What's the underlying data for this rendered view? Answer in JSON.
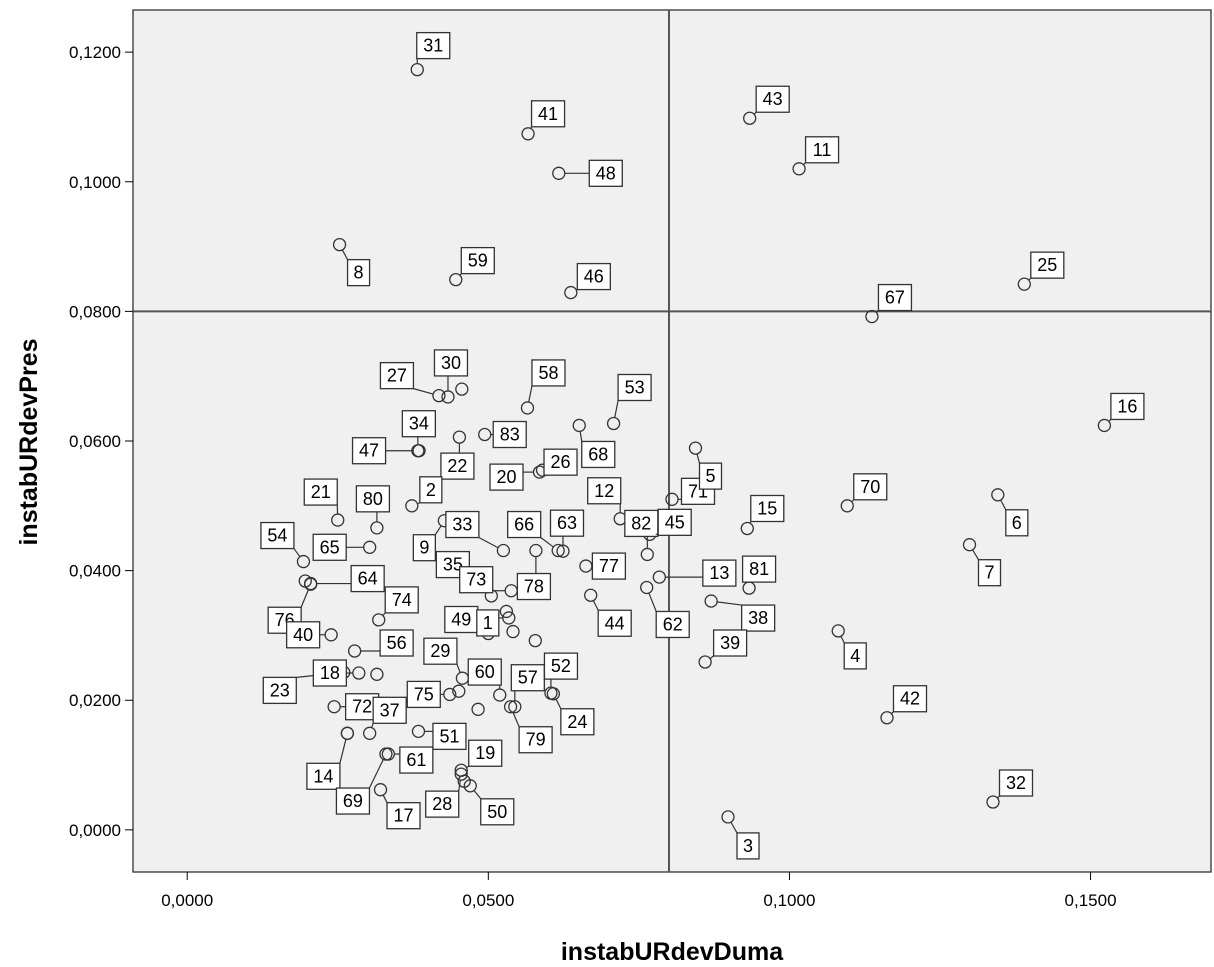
{
  "chart_data": {
    "type": "scatter",
    "xlabel": "instabURdevDuma",
    "ylabel": "instabURdevPres",
    "xlim": [
      -0.009,
      0.17
    ],
    "ylim": [
      -0.0065,
      0.1265
    ],
    "x_ticks": [
      0.0,
      0.05,
      0.1,
      0.15
    ],
    "x_tick_labels": [
      "0,0000",
      "0,0500",
      "0,1000",
      "0,1500"
    ],
    "y_ticks": [
      0.0,
      0.02,
      0.04,
      0.06,
      0.08,
      0.1,
      0.12
    ],
    "y_tick_labels": [
      "0,0000",
      "0,0200",
      "0,0400",
      "0,0600",
      "0,0800",
      "0,1000",
      "0,1200"
    ],
    "reference_lines": {
      "x": 0.08,
      "y": 0.08
    },
    "grid": false,
    "points": [
      {
        "label": "31",
        "x": 0.0382,
        "y": 0.1173,
        "dx": 16,
        "dy": -24
      },
      {
        "label": "41",
        "x": 0.0566,
        "y": 0.1074,
        "dx": 20,
        "dy": -20
      },
      {
        "label": "48",
        "x": 0.0617,
        "y": 0.1013,
        "dx": 47,
        "dy": 0
      },
      {
        "label": "43",
        "x": 0.0934,
        "y": 0.1098,
        "dx": 23,
        "dy": -19
      },
      {
        "label": "11",
        "x": 0.1016,
        "y": 0.102,
        "dx": 23,
        "dy": -19
      },
      {
        "label": "8",
        "x": 0.0253,
        "y": 0.0903,
        "dx": 19,
        "dy": 28
      },
      {
        "label": "59",
        "x": 0.0446,
        "y": 0.0849,
        "dx": 22,
        "dy": -19
      },
      {
        "label": "46",
        "x": 0.0637,
        "y": 0.0829,
        "dx": 23,
        "dy": -16
      },
      {
        "label": "25",
        "x": 0.139,
        "y": 0.0842,
        "dx": 23,
        "dy": -19
      },
      {
        "label": "67",
        "x": 0.1137,
        "y": 0.0792,
        "dx": 23,
        "dy": -19
      },
      {
        "label": "16",
        "x": 0.1523,
        "y": 0.0624,
        "dx": 23,
        "dy": -19
      },
      {
        "label": "27",
        "x": 0.0418,
        "y": 0.067,
        "dx": -42,
        "dy": -20
      },
      {
        "label": "30",
        "x": 0.0433,
        "y": 0.0668,
        "dx": 3,
        "dy": -34
      },
      {
        "label": "",
        "x": 0.0456,
        "y": 0.068
      },
      {
        "label": "58",
        "x": 0.0565,
        "y": 0.0651,
        "dx": 21,
        "dy": -35
      },
      {
        "label": "53",
        "x": 0.0708,
        "y": 0.0627,
        "dx": 21,
        "dy": -36
      },
      {
        "label": "34",
        "x": 0.0383,
        "y": 0.0585,
        "dx": 1,
        "dy": -27
      },
      {
        "label": "47",
        "x": 0.0385,
        "y": 0.0585,
        "dx": -50,
        "dy": 0
      },
      {
        "label": "22",
        "x": 0.0452,
        "y": 0.0606,
        "dx": -2,
        "dy": 29
      },
      {
        "label": "83",
        "x": 0.0494,
        "y": 0.061,
        "dx": 25,
        "dy": 0
      },
      {
        "label": "26",
        "x": 0.059,
        "y": 0.0555,
        "dx": 18,
        "dy": -8
      },
      {
        "label": "20",
        "x": 0.0585,
        "y": 0.0552,
        "dx": -33,
        "dy": 5
      },
      {
        "label": "68",
        "x": 0.0651,
        "y": 0.0624,
        "dx": 19,
        "dy": 29
      },
      {
        "label": "71",
        "x": 0.0805,
        "y": 0.051,
        "dx": 26,
        "dy": -8
      },
      {
        "label": "5",
        "x": 0.0844,
        "y": 0.0589,
        "dx": 15,
        "dy": 28
      },
      {
        "label": "21",
        "x": 0.025,
        "y": 0.0478,
        "dx": -17,
        "dy": -28
      },
      {
        "label": "80",
        "x": 0.0315,
        "y": 0.0466,
        "dx": -4,
        "dy": -29
      },
      {
        "label": "2",
        "x": 0.0373,
        "y": 0.05,
        "dx": 19,
        "dy": -16
      },
      {
        "label": "54",
        "x": 0.0193,
        "y": 0.0414,
        "dx": -26,
        "dy": -26
      },
      {
        "label": "65",
        "x": 0.0303,
        "y": 0.0436,
        "dx": -40,
        "dy": 0
      },
      {
        "label": "9",
        "x": 0.0427,
        "y": 0.0477,
        "dx": -20,
        "dy": 27
      },
      {
        "label": "33",
        "x": 0.0525,
        "y": 0.0431,
        "dx": -41,
        "dy": -26
      },
      {
        "label": "66",
        "x": 0.0616,
        "y": 0.0431,
        "dx": -34,
        "dy": -26
      },
      {
        "label": "63",
        "x": 0.0624,
        "y": 0.043,
        "dx": 4,
        "dy": -28
      },
      {
        "label": "12",
        "x": 0.0719,
        "y": 0.048,
        "dx": -16,
        "dy": -28
      },
      {
        "label": "82",
        "x": 0.0764,
        "y": 0.0425,
        "dx": -6,
        "dy": -31
      },
      {
        "label": "45",
        "x": 0.0768,
        "y": 0.0456,
        "dx": 25,
        "dy": -12
      },
      {
        "label": "15",
        "x": 0.093,
        "y": 0.0465,
        "dx": 20,
        "dy": -20
      },
      {
        "label": "70",
        "x": 0.1096,
        "y": 0.05,
        "dx": 23,
        "dy": -19
      },
      {
        "label": "6",
        "x": 0.1346,
        "y": 0.0517,
        "dx": 19,
        "dy": 28
      },
      {
        "label": "7",
        "x": 0.1299,
        "y": 0.044,
        "dx": 20,
        "dy": 28
      },
      {
        "label": "64",
        "x": 0.0205,
        "y": 0.038,
        "dx": 57,
        "dy": -5
      },
      {
        "label": "",
        "x": 0.0196,
        "y": 0.0384
      },
      {
        "label": "35",
        "x": 0.0471,
        "y": 0.038,
        "dx": -18,
        "dy": -19
      },
      {
        "label": "73",
        "x": 0.0538,
        "y": 0.0369,
        "dx": -35,
        "dy": -11
      },
      {
        "label": "78",
        "x": 0.0579,
        "y": 0.0431,
        "dx": -2,
        "dy": 36
      },
      {
        "label": "77",
        "x": 0.0662,
        "y": 0.0407,
        "dx": 23,
        "dy": 0
      },
      {
        "label": "62",
        "x": 0.0763,
        "y": 0.0374,
        "dx": 26,
        "dy": 37
      },
      {
        "label": "13",
        "x": 0.0784,
        "y": 0.039,
        "dx": 60,
        "dy": -4
      },
      {
        "label": "81",
        "x": 0.0933,
        "y": 0.0373,
        "dx": 10,
        "dy": -19
      },
      {
        "label": "76",
        "x": 0.0205,
        "y": 0.0379,
        "dx": -26,
        "dy": 36
      },
      {
        "label": "74",
        "x": 0.0318,
        "y": 0.0324,
        "dx": 23,
        "dy": -20
      },
      {
        "label": "49",
        "x": 0.05,
        "y": 0.0303,
        "dx": -27,
        "dy": -14
      },
      {
        "label": "",
        "x": 0.0505,
        "y": 0.0361
      },
      {
        "label": "1",
        "x": 0.0534,
        "y": 0.0327,
        "dx": -21,
        "dy": 5
      },
      {
        "label": "",
        "x": 0.053,
        "y": 0.0337
      },
      {
        "label": "",
        "x": 0.0541,
        "y": 0.0306
      },
      {
        "label": "",
        "x": 0.0578,
        "y": 0.0292
      },
      {
        "label": "44",
        "x": 0.067,
        "y": 0.0362,
        "dx": 24,
        "dy": 28
      },
      {
        "label": "38",
        "x": 0.087,
        "y": 0.0353,
        "dx": 47,
        "dy": 17
      },
      {
        "label": "4",
        "x": 0.1081,
        "y": 0.0307,
        "dx": 17,
        "dy": 25
      },
      {
        "label": "40",
        "x": 0.0239,
        "y": 0.0301,
        "dx": -28,
        "dy": 0
      },
      {
        "label": "56",
        "x": 0.0278,
        "y": 0.0276,
        "dx": 42,
        "dy": -8
      },
      {
        "label": "29",
        "x": 0.0457,
        "y": 0.0234,
        "dx": -22,
        "dy": -27
      },
      {
        "label": "60",
        "x": 0.0519,
        "y": 0.0208,
        "dx": -15,
        "dy": -23
      },
      {
        "label": "57",
        "x": 0.0544,
        "y": 0.019,
        "dx": 13,
        "dy": -29
      },
      {
        "label": "52",
        "x": 0.0604,
        "y": 0.0211,
        "dx": 10,
        "dy": -27
      },
      {
        "label": "39",
        "x": 0.086,
        "y": 0.0259,
        "dx": 25,
        "dy": -19
      },
      {
        "label": "23",
        "x": 0.026,
        "y": 0.0243,
        "dx": -64,
        "dy": 18
      },
      {
        "label": "18",
        "x": 0.0285,
        "y": 0.0242,
        "dx": -29,
        "dy": 0
      },
      {
        "label": "",
        "x": 0.0315,
        "y": 0.024
      },
      {
        "label": "75",
        "x": 0.0436,
        "y": 0.0209,
        "dx": -26,
        "dy": 0
      },
      {
        "label": "",
        "x": 0.0451,
        "y": 0.0214
      },
      {
        "label": "",
        "x": 0.0483,
        "y": 0.0186
      },
      {
        "label": "24",
        "x": 0.0608,
        "y": 0.021,
        "dx": 24,
        "dy": 28
      },
      {
        "label": "72",
        "x": 0.0244,
        "y": 0.019,
        "dx": 28,
        "dy": 0
      },
      {
        "label": "37",
        "x": 0.0303,
        "y": 0.0149,
        "dx": 20,
        "dy": -23
      },
      {
        "label": "",
        "x": 0.0266,
        "y": 0.0149
      },
      {
        "label": "51",
        "x": 0.0384,
        "y": 0.0152,
        "dx": 31,
        "dy": 5
      },
      {
        "label": "79",
        "x": 0.0537,
        "y": 0.019,
        "dx": 25,
        "dy": 33
      },
      {
        "label": "42",
        "x": 0.1162,
        "y": 0.0173,
        "dx": 23,
        "dy": -19
      },
      {
        "label": "14",
        "x": 0.0266,
        "y": 0.0149,
        "dx": -24,
        "dy": 43
      },
      {
        "label": "61",
        "x": 0.0334,
        "y": 0.0117,
        "dx": 28,
        "dy": 6
      },
      {
        "label": "69",
        "x": 0.033,
        "y": 0.0117,
        "dx": -33,
        "dy": 47
      },
      {
        "label": "17",
        "x": 0.0321,
        "y": 0.0062,
        "dx": 23,
        "dy": 26
      },
      {
        "label": "19",
        "x": 0.0455,
        "y": 0.0092,
        "dx": 24,
        "dy": -17
      },
      {
        "label": "28",
        "x": 0.0455,
        "y": 0.0086,
        "dx": -19,
        "dy": 30
      },
      {
        "label": "50",
        "x": 0.047,
        "y": 0.0068,
        "dx": 27,
        "dy": 26
      },
      {
        "label": "",
        "x": 0.046,
        "y": 0.0075
      },
      {
        "label": "3",
        "x": 0.0898,
        "y": 0.002,
        "dx": 20,
        "dy": 29
      },
      {
        "label": "32",
        "x": 0.1338,
        "y": 0.0043,
        "dx": 23,
        "dy": -19
      }
    ]
  }
}
